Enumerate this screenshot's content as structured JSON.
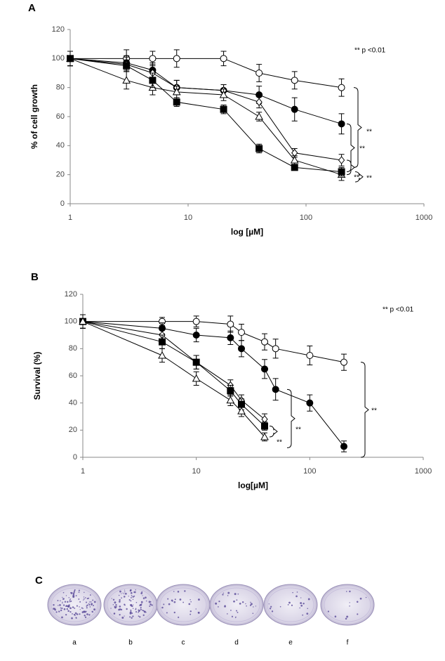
{
  "chart_data": [
    {
      "type": "line",
      "panel_label": "A",
      "x_label": "log [µM]",
      "y_label": "% of cell growth",
      "annotations": [
        "** p <0.01",
        "**",
        "**",
        "**",
        "**"
      ],
      "log_x": true,
      "xlim": [
        1,
        1000
      ],
      "xticks": [
        1,
        10,
        100,
        1000
      ],
      "ylim": [
        0,
        120
      ],
      "yticks": [
        0,
        20,
        40,
        60,
        80,
        100,
        120
      ],
      "series": [
        {
          "marker": "circle-open",
          "color": "#000000",
          "x": [
            1,
            3,
            5,
            8,
            20,
            40,
            80,
            200
          ],
          "values": [
            100,
            100,
            100,
            100,
            100,
            90,
            85,
            80
          ],
          "errors": [
            5,
            6,
            5,
            6,
            5,
            6,
            6,
            6
          ]
        },
        {
          "marker": "circle-filled",
          "color": "#000000",
          "x": [
            1,
            3,
            5,
            8,
            20,
            40,
            80,
            200
          ],
          "values": [
            100,
            97,
            92,
            80,
            78,
            75,
            65,
            55
          ],
          "errors": [
            5,
            5,
            5,
            5,
            4,
            6,
            8,
            7
          ]
        },
        {
          "marker": "diamond-open",
          "color": "#000000",
          "x": [
            1,
            3,
            5,
            8,
            20,
            40,
            80,
            200
          ],
          "values": [
            100,
            96,
            90,
            80,
            78,
            70,
            35,
            30
          ],
          "errors": [
            5,
            5,
            6,
            5,
            4,
            4,
            3,
            4
          ]
        },
        {
          "marker": "triangle-open",
          "color": "#000000",
          "x": [
            1,
            3,
            5,
            8,
            20,
            40,
            80,
            200
          ],
          "values": [
            100,
            85,
            80,
            77,
            75,
            60,
            30,
            20
          ],
          "errors": [
            5,
            6,
            5,
            4,
            4,
            3,
            3,
            4
          ]
        },
        {
          "marker": "square-filled",
          "color": "#000000",
          "x": [
            1,
            3,
            5,
            8,
            20,
            40,
            80,
            200
          ],
          "values": [
            100,
            95,
            85,
            70,
            65,
            38,
            25,
            22
          ],
          "errors": [
            5,
            4,
            5,
            3,
            3,
            3,
            2,
            3
          ]
        }
      ]
    },
    {
      "type": "line",
      "panel_label": "B",
      "x_label": "log[µM]",
      "y_label": "Survival (%)",
      "annotations": [
        "** p <0.01",
        "**",
        "**",
        "**"
      ],
      "log_x": true,
      "xlim": [
        1,
        1000
      ],
      "xticks": [
        1,
        10,
        100,
        1000
      ],
      "ylim": [
        0,
        120
      ],
      "yticks": [
        0,
        20,
        40,
        60,
        80,
        100,
        120
      ],
      "series": [
        {
          "marker": "circle-open",
          "color": "#000000",
          "x": [
            1,
            5,
            10,
            20,
            25,
            40,
            50,
            100,
            200
          ],
          "values": [
            100,
            100,
            100,
            98,
            92,
            85,
            80,
            75,
            70
          ],
          "errors": [
            5,
            3,
            4,
            6,
            6,
            6,
            7,
            7,
            6
          ]
        },
        {
          "marker": "circle-filled",
          "color": "#000000",
          "x": [
            1,
            5,
            10,
            20,
            25,
            40,
            50,
            100,
            200
          ],
          "values": [
            100,
            95,
            90,
            88,
            80,
            65,
            50,
            40,
            8
          ],
          "errors": [
            5,
            4,
            5,
            5,
            6,
            7,
            8,
            6,
            4
          ]
        },
        {
          "marker": "diamond-open",
          "color": "#000000",
          "x": [
            1,
            5,
            10,
            20,
            25,
            40
          ],
          "values": [
            100,
            90,
            70,
            53,
            42,
            28
          ],
          "errors": [
            5,
            5,
            5,
            4,
            4,
            4
          ]
        },
        {
          "marker": "square-filled",
          "color": "#000000",
          "x": [
            1,
            5,
            10,
            20,
            25,
            40
          ],
          "values": [
            100,
            85,
            70,
            49,
            39,
            23
          ],
          "errors": [
            5,
            5,
            5,
            4,
            4,
            3
          ]
        },
        {
          "marker": "triangle-open",
          "color": "#000000",
          "x": [
            1,
            5,
            10,
            20,
            25,
            40
          ],
          "values": [
            100,
            75,
            58,
            42,
            34,
            15
          ],
          "errors": [
            5,
            5,
            5,
            4,
            4,
            3
          ]
        }
      ]
    }
  ],
  "panel_c": {
    "label": "C",
    "dishes": [
      "a",
      "b",
      "c",
      "d",
      "e",
      "f"
    ]
  }
}
